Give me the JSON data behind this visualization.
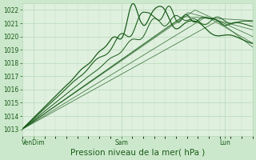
{
  "title": "",
  "xlabel": "Pression niveau de la mer( hPa )",
  "bg_color": "#cce8cc",
  "plot_bg_color": "#dff0df",
  "grid_color_major": "#b8d8b8",
  "grid_color_minor": "#c8dcc8",
  "line_color": "#1a5c1a",
  "ylim": [
    1012.5,
    1022.5
  ],
  "yticks": [
    1013,
    1014,
    1015,
    1016,
    1017,
    1018,
    1019,
    1020,
    1021,
    1022
  ],
  "xtick_labels": [
    "VenDim",
    "Sam",
    "Lun"
  ],
  "xtick_positions": [
    0.05,
    0.43,
    0.88
  ],
  "font_color": "#1a5c1a",
  "font_size_tick": 5.5,
  "font_size_xlabel": 7.5
}
